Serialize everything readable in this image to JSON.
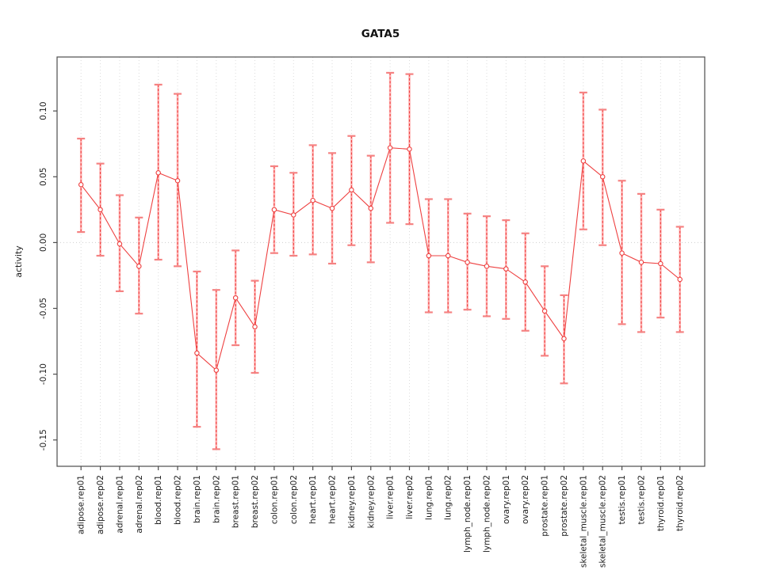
{
  "page": {
    "background": "#ffffff"
  },
  "chart_data": {
    "type": "line",
    "title": "GATA5",
    "xlabel": "",
    "ylabel": "activity",
    "legend": "none",
    "grid": {
      "vertical_dotted_per_category": true,
      "horizontal_dotted_zero_line": true
    },
    "ylim": [
      -0.17,
      0.141
    ],
    "yticks": [
      "0.10",
      "0.05",
      "0.00",
      "-0.05",
      "-0.10",
      "-0.15"
    ],
    "categories": [
      "adipose.rep01",
      "adipose.rep02",
      "adrenal.rep01",
      "adrenal.rep02",
      "blood.rep01",
      "blood.rep02",
      "brain.rep01",
      "brain.rep02",
      "breast.rep01",
      "breast.rep02",
      "colon.rep01",
      "colon.rep02",
      "heart.rep01",
      "heart.rep02",
      "kidney.rep01",
      "kidney.rep02",
      "liver.rep01",
      "liver.rep02",
      "lung.rep01",
      "lung.rep02",
      "lymph_node.rep01",
      "lymph_node.rep02",
      "ovary.rep01",
      "ovary.rep02",
      "prostate.rep01",
      "prostate.rep02",
      "skeletal_muscle.rep01",
      "skeletal_muscle.rep02",
      "testis.rep01",
      "testis.rep02",
      "thyroid.rep01",
      "thyroid.rep02"
    ],
    "series": [
      {
        "name": "activity",
        "marker": "open-circle",
        "values": [
          0.044,
          0.025,
          -0.001,
          -0.018,
          0.053,
          0.047,
          -0.084,
          -0.097,
          -0.042,
          -0.064,
          0.025,
          0.021,
          0.032,
          0.026,
          0.04,
          0.026,
          0.072,
          0.071,
          -0.01,
          -0.01,
          -0.015,
          -0.018,
          -0.02,
          -0.03,
          -0.052,
          -0.073,
          0.062,
          0.05,
          -0.008,
          -0.015,
          -0.016,
          -0.028
        ],
        "err_lo": [
          0.008,
          -0.01,
          -0.037,
          -0.054,
          -0.013,
          -0.018,
          -0.14,
          -0.157,
          -0.078,
          -0.099,
          -0.008,
          -0.01,
          -0.009,
          -0.016,
          -0.002,
          -0.015,
          0.015,
          0.014,
          -0.053,
          -0.053,
          -0.051,
          -0.056,
          -0.058,
          -0.067,
          -0.086,
          -0.107,
          0.01,
          -0.002,
          -0.062,
          -0.068,
          -0.057,
          -0.068
        ],
        "err_hi": [
          0.079,
          0.06,
          0.036,
          0.019,
          0.12,
          0.113,
          -0.022,
          -0.036,
          -0.006,
          -0.029,
          0.058,
          0.053,
          0.074,
          0.068,
          0.081,
          0.066,
          0.129,
          0.128,
          0.033,
          0.033,
          0.022,
          0.02,
          0.017,
          0.007,
          -0.018,
          -0.04,
          0.114,
          0.101,
          0.047,
          0.037,
          0.025,
          0.012
        ]
      }
    ],
    "colors": {
      "line": "#ee4040",
      "marker_stroke": "#ee4040",
      "marker_fill": "#ffffff",
      "error_stem_under": "#ffb3b3",
      "error_stem_dash": "#ee4040",
      "error_cap": "#f58282",
      "gridline": "#dcdcdc",
      "zero_line": "#cfcfcf",
      "axis_frame": "#4d4d4d",
      "text": "#1a1a1a"
    }
  }
}
